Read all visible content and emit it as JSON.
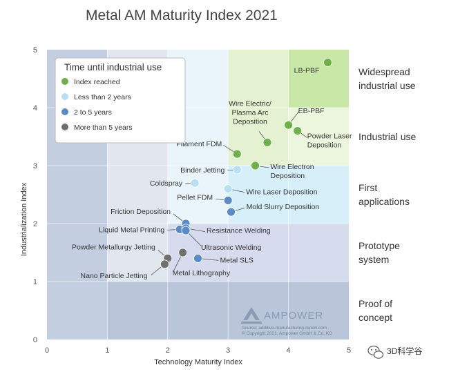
{
  "chart_data": {
    "type": "scatter",
    "title": "Metal AM Maturity Index 2021",
    "xlabel": "Technology Maturity Index",
    "ylabel": "Industrialization Index",
    "xlim": [
      0,
      5
    ],
    "ylim": [
      0,
      5
    ],
    "xticks": [
      "0",
      "1",
      "2",
      "3",
      "4",
      "5"
    ],
    "yticks": [
      "0",
      "1",
      "2",
      "3",
      "4",
      "5"
    ],
    "legend": {
      "title": "Time until industrial use",
      "position": "top-left",
      "entries": [
        {
          "key": "reached",
          "label": "Index reached",
          "color": "#6fb04a"
        },
        {
          "key": "lt2",
          "label": "Less than 2 years",
          "color": "#b9e0f2"
        },
        {
          "key": "2to5",
          "label": "2 to 5 years",
          "color": "#5b8bc6"
        },
        {
          "key": "gt5",
          "label": "More than 5 years",
          "color": "#707070"
        }
      ]
    },
    "zones": [
      {
        "label": "Widespread industrial use",
        "lines": [
          "Widespread",
          "industrial use"
        ],
        "y_range": [
          4,
          5
        ]
      },
      {
        "label": "Industrial use",
        "lines": [
          "Industrial use"
        ],
        "y_range": [
          3,
          4
        ]
      },
      {
        "label": "First applications",
        "lines": [
          "First",
          "applications"
        ],
        "y_range": [
          2,
          3
        ]
      },
      {
        "label": "Prototype system",
        "lines": [
          "Prototype",
          "system"
        ],
        "y_range": [
          1,
          2
        ]
      },
      {
        "label": "Proof of concept",
        "lines": [
          "Proof of",
          "concept"
        ],
        "y_range": [
          0,
          1
        ]
      }
    ],
    "points": [
      {
        "name": "LB-PBF",
        "lines": [
          "LB-PBF"
        ],
        "x": 4.65,
        "y": 4.78,
        "category": "reached"
      },
      {
        "name": "EB-PBF",
        "lines": [
          "EB-PBF"
        ],
        "x": 4.0,
        "y": 3.7,
        "category": "reached"
      },
      {
        "name": "Powder Laser Deposition",
        "lines": [
          "Powder Laser",
          "Deposition"
        ],
        "x": 4.15,
        "y": 3.6,
        "category": "reached"
      },
      {
        "name": "Wire Electric/ Plasma Arc Deposition",
        "lines": [
          "Wire Electric/",
          "Plasma Arc",
          "Deposition"
        ],
        "x": 3.65,
        "y": 3.4,
        "category": "reached"
      },
      {
        "name": "Filament FDM",
        "lines": [
          "Filament FDM"
        ],
        "x": 3.15,
        "y": 3.2,
        "category": "reached"
      },
      {
        "name": "Wire Electron Deposition",
        "lines": [
          "Wire Electron",
          "Deposition"
        ],
        "x": 3.45,
        "y": 3.0,
        "category": "reached"
      },
      {
        "name": "Binder Jetting",
        "lines": [
          "Binder Jetting"
        ],
        "x": 3.15,
        "y": 2.93,
        "category": "lt2"
      },
      {
        "name": "Coldspray",
        "lines": [
          "Coldspray"
        ],
        "x": 2.45,
        "y": 2.7,
        "category": "lt2"
      },
      {
        "name": "Wire Laser Deposition",
        "lines": [
          "Wire Laser Deposition"
        ],
        "x": 3.0,
        "y": 2.6,
        "category": "lt2"
      },
      {
        "name": "Pellet FDM",
        "lines": [
          "Pellet FDM"
        ],
        "x": 3.0,
        "y": 2.4,
        "category": "2to5"
      },
      {
        "name": "Mold Slurry Deposition",
        "lines": [
          "Mold Slurry Deposition"
        ],
        "x": 3.05,
        "y": 2.2,
        "category": "2to5"
      },
      {
        "name": "Friction Deposition",
        "lines": [
          "Friction Deposition"
        ],
        "x": 2.3,
        "y": 2.0,
        "category": "2to5"
      },
      {
        "name": "Liquid Metal Printing",
        "lines": [
          "Liquid Metal Printing"
        ],
        "x": 2.2,
        "y": 1.9,
        "category": "2to5"
      },
      {
        "name": "Resistance Welding",
        "lines": [
          "Resistance Welding"
        ],
        "x": 2.3,
        "y": 1.92,
        "category": "2to5"
      },
      {
        "name": "Ultrasonic Welding",
        "lines": [
          "Ultrasonic Welding"
        ],
        "x": 2.3,
        "y": 1.88,
        "category": "2to5"
      },
      {
        "name": "Metal SLS",
        "lines": [
          "Metal SLS"
        ],
        "x": 2.5,
        "y": 1.4,
        "category": "2to5"
      },
      {
        "name": "Powder Metallurgy Jetting",
        "lines": [
          "Powder Metallurgy Jetting"
        ],
        "x": 2.0,
        "y": 1.4,
        "category": "gt5"
      },
      {
        "name": "Nano Particle Jetting",
        "lines": [
          "Nano Particle Jetting"
        ],
        "x": 1.95,
        "y": 1.3,
        "category": "gt5"
      },
      {
        "name": "Metal Lithography",
        "lines": [
          "Metal Lithography"
        ],
        "x": 2.25,
        "y": 1.5,
        "category": "gt5"
      }
    ]
  },
  "branding": {
    "logo_text": "AMPOWER",
    "source_line": "Source: additive-manufacturing-report.com",
    "copyright_line": "© Copyright 2021, Ampower GmbH & Co. KG",
    "watermark_text": "3D科学谷"
  }
}
